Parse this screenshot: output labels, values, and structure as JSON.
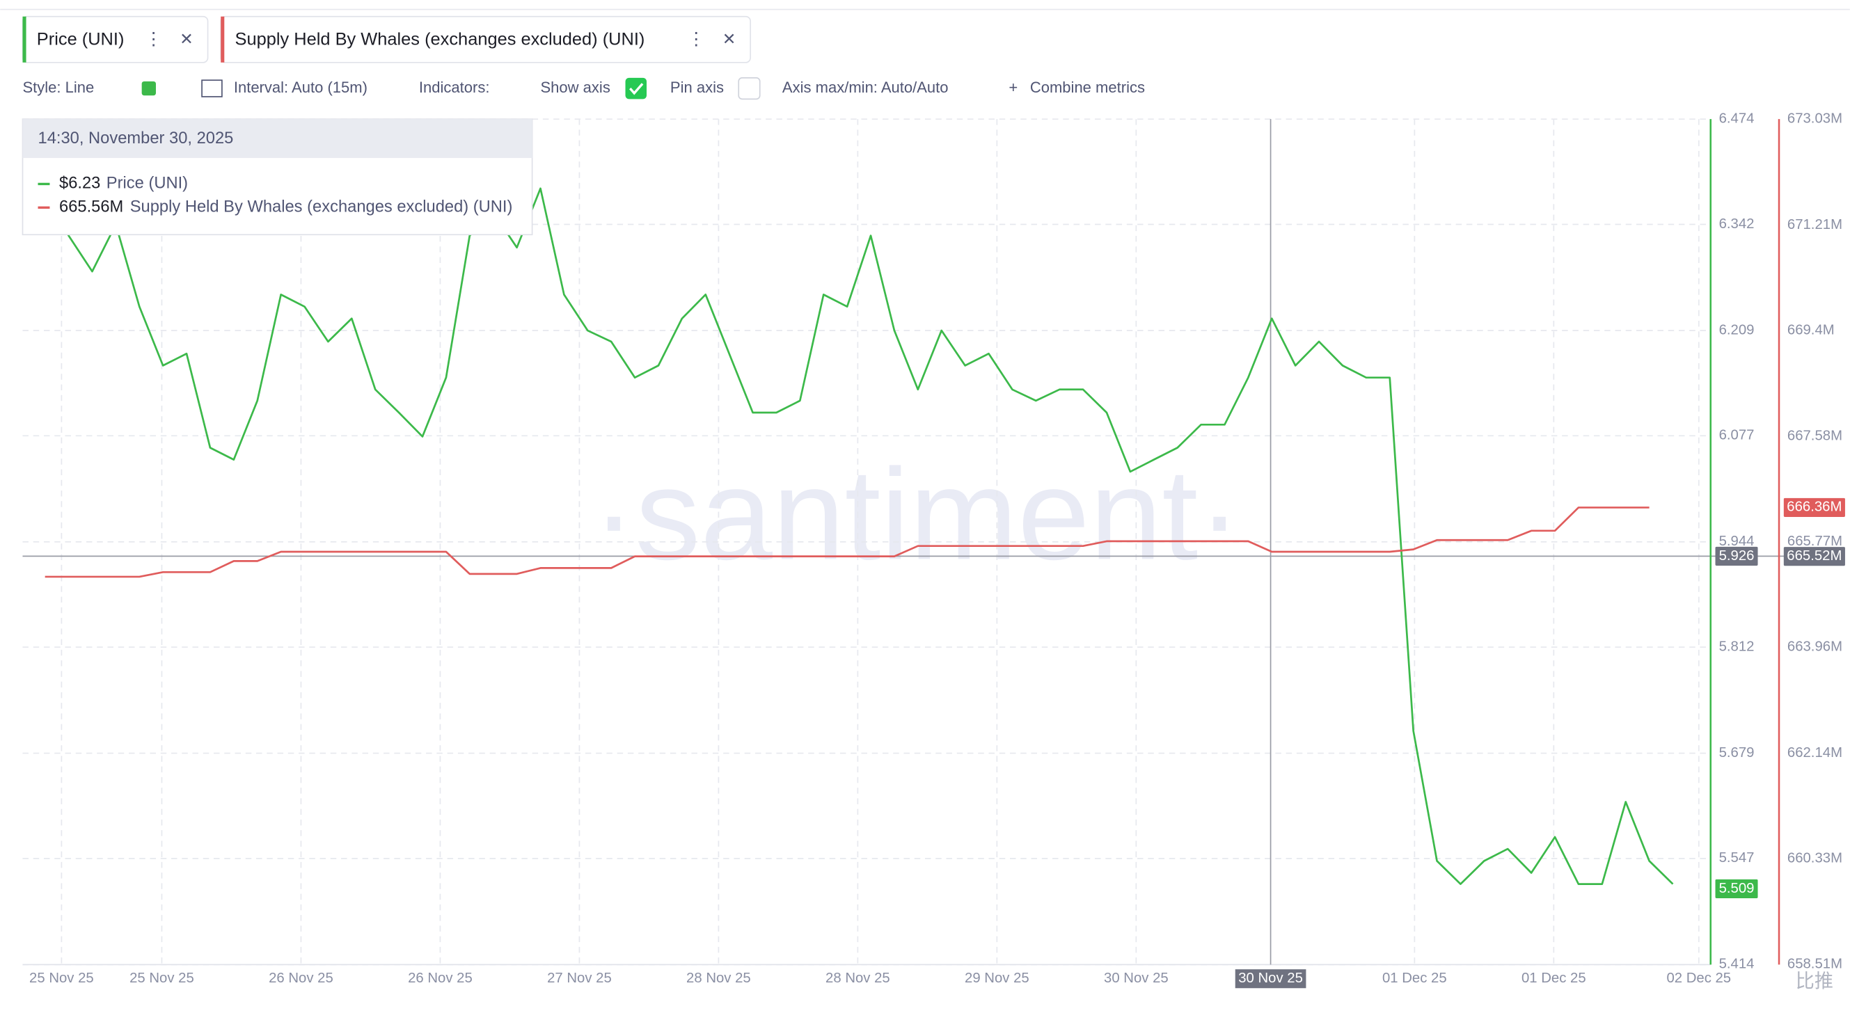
{
  "tabs": [
    "Price (UNI)",
    "Supply Held By Whales (exchanges excluded) (UNI)"
  ],
  "toolbar": {
    "style": "Style: Line",
    "interval": "Interval: Auto (15m)",
    "indicators": "Indicators:",
    "show_axis": "Show axis",
    "pin_axis": "Pin axis",
    "axis_range": "Axis max/min: Auto/Auto",
    "combine": "Combine metrics"
  },
  "tooltip": {
    "date": "14:30, November 30, 2025",
    "rows": [
      {
        "value": "$6.23",
        "name": "Price (UNI)"
      },
      {
        "value": "665.56M",
        "name": "Supply Held By Whales (exchanges excluded) (UNI)"
      }
    ]
  },
  "watermark": "·santiment·",
  "corner_mark": "比推",
  "chart_data": {
    "type": "line",
    "xlim": [
      -0.95,
      70.6
    ],
    "xticks": [
      {
        "value": 0.7,
        "label": "25 Nov 25"
      },
      {
        "value": 4.95,
        "label": "25 Nov 25"
      },
      {
        "value": 10.85,
        "label": "26 Nov 25"
      },
      {
        "value": 16.75,
        "label": "26 Nov 25"
      },
      {
        "value": 22.65,
        "label": "27 Nov 25"
      },
      {
        "value": 28.55,
        "label": "28 Nov 25"
      },
      {
        "value": 34.45,
        "label": "28 Nov 25"
      },
      {
        "value": 40.35,
        "label": "29 Nov 25"
      },
      {
        "value": 46.25,
        "label": "30 Nov 25"
      },
      {
        "value": 58.05,
        "label": "01 Dec 25"
      },
      {
        "value": 63.95,
        "label": "01 Dec 25"
      },
      {
        "value": 70.1,
        "label": "02 Dec 25"
      }
    ],
    "ylim": [
      5.414,
      6.474
    ],
    "yticks": [
      6.474,
      6.342,
      6.209,
      6.077,
      5.944,
      5.812,
      5.679,
      5.547,
      5.414
    ],
    "y2lim": [
      658.51,
      673.03
    ],
    "y2ticks": [
      {
        "value": 673.03,
        "label": "673.03M"
      },
      {
        "value": 671.21,
        "label": "671.21M"
      },
      {
        "value": 669.4,
        "label": "669.4M"
      },
      {
        "value": 667.58,
        "label": "667.58M"
      },
      {
        "value": 665.77,
        "label": "665.77M"
      },
      {
        "value": 663.96,
        "label": "663.96M"
      },
      {
        "value": 662.14,
        "label": "662.14M"
      },
      {
        "value": 660.33,
        "label": "660.33M"
      },
      {
        "value": 658.51,
        "label": "658.51M"
      }
    ],
    "grid": true,
    "series": [
      {
        "name": "Price (UNI)",
        "color": "#3cb94a",
        "values": [
          6.387,
          6.328,
          6.283,
          6.342,
          6.239,
          6.165,
          6.18,
          6.062,
          6.047,
          6.121,
          6.254,
          6.239,
          6.195,
          6.224,
          6.135,
          6.106,
          6.076,
          6.15,
          6.328,
          6.357,
          6.313,
          6.387,
          6.254,
          6.209,
          6.195,
          6.15,
          6.165,
          6.224,
          6.254,
          6.18,
          6.106,
          6.106,
          6.121,
          6.254,
          6.239,
          6.328,
          6.209,
          6.135,
          6.209,
          6.165,
          6.18,
          6.135,
          6.121,
          6.135,
          6.135,
          6.106,
          6.032,
          6.047,
          6.062,
          6.091,
          6.091,
          6.15,
          6.224,
          6.165,
          6.195,
          6.165,
          6.15,
          6.15,
          5.707,
          5.544,
          5.515,
          5.544,
          5.559,
          5.529,
          5.574,
          5.515,
          5.515,
          5.618,
          5.544,
          5.515
        ]
      },
      {
        "name": "Supply Held By Whales (exchanges excluded) (UNI)",
        "color": "#e05c5c",
        "axis": "y2",
        "values": [
          665.17,
          665.17,
          665.17,
          665.17,
          665.17,
          665.25,
          665.25,
          665.25,
          665.44,
          665.44,
          665.6,
          665.6,
          665.6,
          665.6,
          665.6,
          665.6,
          665.6,
          665.6,
          665.22,
          665.22,
          665.22,
          665.32,
          665.32,
          665.32,
          665.32,
          665.52,
          665.52,
          665.52,
          665.52,
          665.52,
          665.52,
          665.52,
          665.52,
          665.52,
          665.52,
          665.52,
          665.52,
          665.7,
          665.7,
          665.7,
          665.7,
          665.7,
          665.7,
          665.7,
          665.7,
          665.78,
          665.78,
          665.78,
          665.78,
          665.78,
          665.78,
          665.78,
          665.6,
          665.6,
          665.6,
          665.6,
          665.6,
          665.6,
          665.64,
          665.8,
          665.8,
          665.8,
          665.8,
          665.96,
          665.96,
          666.36,
          666.36,
          666.36,
          666.36,
          null
        ]
      }
    ],
    "crosshair": {
      "x": {
        "value": 51.95,
        "label": "30 Nov 25"
      },
      "y": 5.926,
      "y2": {
        "value": 665.52,
        "label": "665.52M"
      }
    },
    "last_labels": {
      "y": 5.509,
      "y2": {
        "value": 666.36,
        "label": "666.36M"
      }
    }
  }
}
